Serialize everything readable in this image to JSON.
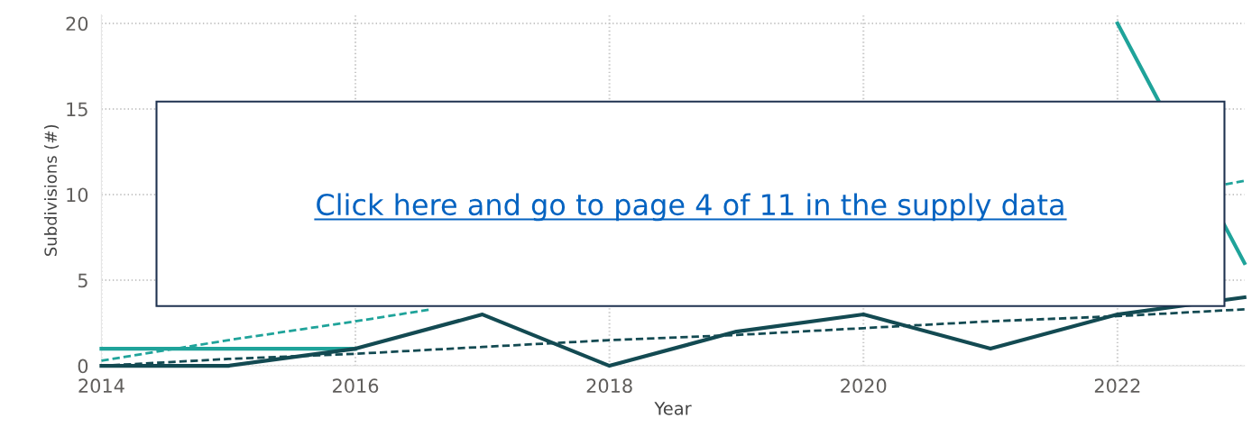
{
  "chart_data": {
    "type": "line",
    "xlabel": "Year",
    "ylabel": "Subdivisions (#)",
    "x": [
      2014,
      2015,
      2016,
      2017,
      2018,
      2019,
      2020,
      2021,
      2022,
      2023
    ],
    "series": [
      {
        "color": "#1fa39a",
        "values": [
          1,
          1,
          1,
          null,
          null,
          null,
          null,
          null,
          20,
          6
        ]
      },
      {
        "color": "#134a52",
        "values": [
          0,
          0,
          1,
          3,
          0,
          2,
          3,
          1,
          3,
          4
        ]
      },
      {
        "color": "#1fa39a",
        "x": [
          2014,
          2015,
          2016,
          2016.6,
          2019,
          2022.85,
          2023
        ],
        "values": [
          0.3,
          1.5,
          2.6,
          3.3,
          null,
          10.6,
          10.8
        ],
        "line_style": "dashed"
      },
      {
        "color": "#134a52",
        "values": [
          0,
          0.4,
          0.7,
          1.1,
          1.5,
          1.8,
          2.2,
          2.6,
          2.9,
          3.3
        ],
        "line_style": "dashed"
      }
    ],
    "xlim": [
      2014,
      2023
    ],
    "xticks": [
      2014,
      2016,
      2018,
      2020,
      2022
    ],
    "ylim": [
      0,
      20.5
    ],
    "yticks": [
      0,
      5,
      10,
      15,
      20
    ],
    "grid": true,
    "line_style": "solid",
    "marker": "none",
    "annotations": [
      "Click here and go to page 4 of 11 in the supply data"
    ]
  }
}
